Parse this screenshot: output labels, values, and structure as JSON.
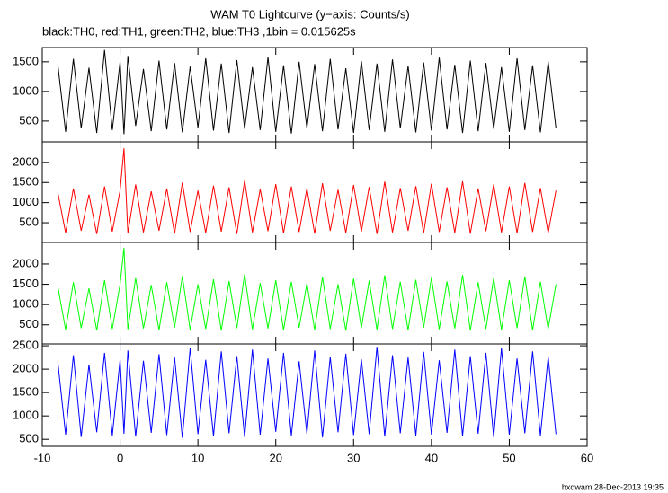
{
  "chart_data": [
    {
      "type": "line",
      "title": "WAM T0 Lightcurve (y−axis: Counts/s)",
      "subtitle": "black:TH0, red:TH1, green:TH2, blue:TH3 ,1bin = 0.015625s",
      "x": [
        -8,
        -7,
        -6,
        -5,
        -4,
        -3,
        -2,
        -1,
        0,
        0.5,
        1,
        2,
        3,
        4,
        5,
        6,
        7,
        8,
        9,
        10,
        11,
        12,
        13,
        14,
        15,
        16,
        17,
        18,
        19,
        20,
        21,
        22,
        23,
        24,
        25,
        26,
        27,
        28,
        29,
        30,
        31,
        32,
        33,
        34,
        35,
        36,
        37,
        38,
        39,
        40,
        41,
        42,
        43,
        44,
        45,
        46,
        47,
        48,
        49,
        50,
        51,
        52,
        53,
        54,
        55,
        56
      ],
      "series": [
        {
          "color": "#000000",
          "values": [
            1450,
            320,
            1550,
            380,
            1400,
            300,
            1700,
            350,
            1500,
            280,
            1600,
            420,
            1380,
            330,
            1520,
            360,
            1480,
            310,
            1420,
            390,
            1560,
            340,
            1470,
            300,
            1530,
            370,
            1410,
            350,
            1580,
            320,
            1440,
            290,
            1500,
            380,
            1460,
            330,
            1550,
            360,
            1390,
            300,
            1510,
            350,
            1470,
            320,
            1540,
            380,
            1430,
            310,
            1490,
            340,
            1570,
            360,
            1450,
            300,
            1520,
            330,
            1480,
            370,
            1410,
            320,
            1560,
            350,
            1440,
            310,
            1500,
            380
          ]
        }
      ],
      "ylim": [
        150,
        1740
      ],
      "yticks": [
        500,
        1000,
        1500
      ]
    },
    {
      "type": "line",
      "x": [
        -8,
        -7,
        -6,
        -5,
        -4,
        -3,
        -2,
        -1,
        0,
        0.5,
        1,
        2,
        3,
        4,
        5,
        6,
        7,
        8,
        9,
        10,
        11,
        12,
        13,
        14,
        15,
        16,
        17,
        18,
        19,
        20,
        21,
        22,
        23,
        24,
        25,
        26,
        27,
        28,
        29,
        30,
        31,
        32,
        33,
        34,
        35,
        36,
        37,
        38,
        39,
        40,
        41,
        42,
        43,
        44,
        45,
        46,
        47,
        48,
        49,
        50,
        51,
        52,
        53,
        54,
        55,
        56
      ],
      "series": [
        {
          "color": "#ff0000",
          "values": [
            1250,
            250,
            1350,
            300,
            1200,
            220,
            1400,
            280,
            1300,
            2350,
            240,
            1450,
            260,
            1280,
            300,
            1350,
            230,
            1500,
            270,
            1300,
            250,
            1420,
            280,
            1380,
            220,
            1550,
            260,
            1330,
            290,
            1460,
            240,
            1400,
            270,
            1350,
            230,
            1480,
            300,
            1320,
            250,
            1440,
            280,
            1390,
            220,
            1520,
            260,
            1360,
            300,
            1410,
            240,
            1470,
            270,
            1380,
            250,
            1530,
            230,
            1350,
            290,
            1450,
            260,
            1400,
            240,
            1490,
            270,
            1360,
            250,
            1300
          ]
        }
      ],
      "ylim": [
        10,
        2510
      ],
      "yticks": [
        500,
        1000,
        1500,
        2000
      ]
    },
    {
      "type": "line",
      "x": [
        -8,
        -7,
        -6,
        -5,
        -4,
        -3,
        -2,
        -1,
        0,
        0.5,
        1,
        2,
        3,
        4,
        5,
        6,
        7,
        8,
        9,
        10,
        11,
        12,
        13,
        14,
        15,
        16,
        17,
        18,
        19,
        20,
        21,
        22,
        23,
        24,
        25,
        26,
        27,
        28,
        29,
        30,
        31,
        32,
        33,
        34,
        35,
        36,
        37,
        38,
        39,
        40,
        41,
        42,
        43,
        44,
        45,
        46,
        47,
        48,
        49,
        50,
        51,
        52,
        53,
        54,
        55,
        56
      ],
      "series": [
        {
          "color": "#00ff00",
          "values": [
            1450,
            380,
            1550,
            420,
            1400,
            360,
            1600,
            400,
            1500,
            2400,
            390,
            1650,
            410,
            1480,
            370,
            1550,
            430,
            1700,
            380,
            1500,
            400,
            1620,
            360,
            1580,
            420,
            1750,
            390,
            1530,
            410,
            1600,
            370,
            1560,
            430,
            1520,
            380,
            1680,
            400,
            1500,
            360,
            1640,
            420,
            1590,
            380,
            1720,
            400,
            1560,
            370,
            1610,
            430,
            1660,
            390,
            1570,
            410,
            1730,
            360,
            1550,
            400,
            1650,
            380,
            1600,
            420,
            1690,
            370,
            1560,
            400,
            1500
          ]
        }
      ],
      "ylim": [
        30,
        2530
      ],
      "yticks": [
        500,
        1000,
        1500,
        2000
      ]
    },
    {
      "type": "line",
      "x": [
        -8,
        -7,
        -6,
        -5,
        -4,
        -3,
        -2,
        -1,
        0,
        0.5,
        1,
        2,
        3,
        4,
        5,
        6,
        7,
        8,
        9,
        10,
        11,
        12,
        13,
        14,
        15,
        16,
        17,
        18,
        19,
        20,
        21,
        22,
        23,
        24,
        25,
        26,
        27,
        28,
        29,
        30,
        31,
        32,
        33,
        34,
        35,
        36,
        37,
        38,
        39,
        40,
        41,
        42,
        43,
        44,
        45,
        46,
        47,
        48,
        49,
        50,
        51,
        52,
        53,
        54,
        55,
        56
      ],
      "series": [
        {
          "color": "#0000ff",
          "values": [
            2150,
            600,
            2300,
            550,
            2100,
            650,
            2350,
            580,
            2200,
            620,
            2400,
            560,
            2180,
            640,
            2320,
            590,
            2250,
            530,
            2450,
            610,
            2200,
            570,
            2380,
            630,
            2280,
            550,
            2420,
            600,
            2230,
            660,
            2350,
            580,
            2170,
            620,
            2400,
            540,
            2260,
            650,
            2330,
            590,
            2210,
            610,
            2480,
            560,
            2300,
            630,
            2250,
            580,
            2370,
            600,
            2190,
            640,
            2420,
            570,
            2280,
            620,
            2350,
            550,
            2450,
            600,
            2230,
            630,
            2380,
            580,
            2260,
            610
          ]
        }
      ],
      "ylim": [
        350,
        2540
      ],
      "yticks": [
        500,
        1000,
        1500,
        2000,
        2500
      ],
      "xlim": [
        -10,
        60
      ],
      "xticks": [
        -10,
        0,
        10,
        20,
        30,
        40,
        50,
        60
      ]
    }
  ],
  "footer": "hxdwam 28-Dec-2013 19:35"
}
